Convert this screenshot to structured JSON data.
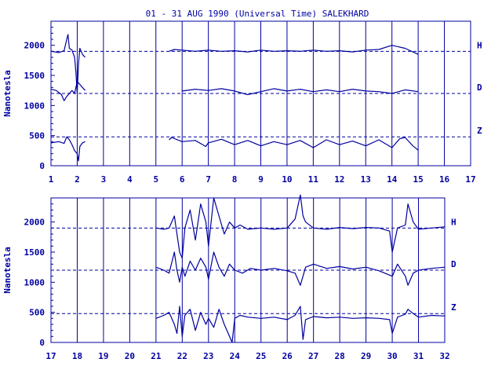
{
  "title": "01 - 31 AUG 1990 (Universal Time) SALEKHARD",
  "colors": {
    "ink": "#0000a0",
    "background": "#ffffff"
  },
  "chart_data": [
    {
      "type": "line",
      "xlabel": "",
      "ylabel": "Nanotesla",
      "xlim": [
        1,
        17
      ],
      "ylim": [
        0,
        2400
      ],
      "x_ticks": [
        1,
        2,
        3,
        4,
        5,
        6,
        7,
        8,
        9,
        10,
        11,
        12,
        13,
        14,
        15,
        16,
        17
      ],
      "y_ticks": [
        0,
        500,
        1000,
        1500,
        2000
      ],
      "grid": "vertical lines at each day",
      "baselines": [
        {
          "label": "H",
          "value": 1900
        },
        {
          "label": "D",
          "value": 1200
        },
        {
          "label": "Z",
          "value": 480
        }
      ],
      "series": [
        {
          "name": "H",
          "segments": [
            {
              "x": [
                1.0,
                1.3,
                1.5,
                1.6,
                1.65,
                1.7,
                1.8,
                1.9,
                1.95,
                2.0,
                2.05,
                2.1,
                2.2,
                2.3
              ],
              "y": [
                1900,
                1880,
                1910,
                2100,
                2180,
                1950,
                1920,
                1800,
                1550,
                1200,
                1700,
                1950,
                1850,
                1800
              ]
            },
            {
              "x": [
                5.5,
                5.7,
                6.0,
                6.5,
                7.0,
                7.5,
                8.0,
                8.5,
                9.0,
                9.5,
                10.0,
                10.5,
                11.0,
                11.5,
                12.0,
                12.5,
                13.0,
                13.5,
                14.0,
                14.5,
                15.0
              ],
              "y": [
                1900,
                1930,
                1920,
                1900,
                1920,
                1900,
                1910,
                1890,
                1920,
                1900,
                1910,
                1900,
                1920,
                1900,
                1910,
                1890,
                1920,
                1930,
                2000,
                1950,
                1850
              ]
            }
          ]
        },
        {
          "name": "D",
          "segments": [
            {
              "x": [
                1.0,
                1.2,
                1.4,
                1.5,
                1.6,
                1.7,
                1.8,
                1.9,
                2.0,
                2.1,
                2.2,
                2.3
              ],
              "y": [
                1270,
                1250,
                1180,
                1080,
                1150,
                1200,
                1250,
                1200,
                1400,
                1350,
                1300,
                1250
              ]
            },
            {
              "x": [
                6.0,
                6.5,
                7.0,
                7.5,
                8.0,
                8.5,
                9.0,
                9.5,
                10.0,
                10.5,
                11.0,
                11.5,
                12.0,
                12.5,
                13.0,
                13.5,
                14.0,
                14.5,
                15.0
              ],
              "y": [
                1240,
                1270,
                1250,
                1280,
                1240,
                1180,
                1230,
                1280,
                1240,
                1270,
                1230,
                1260,
                1230,
                1270,
                1240,
                1230,
                1200,
                1260,
                1230
              ]
            }
          ]
        },
        {
          "name": "Z",
          "segments": [
            {
              "x": [
                1.0,
                1.3,
                1.5,
                1.6,
                1.7,
                1.8,
                1.9,
                2.0,
                2.05,
                2.1,
                2.2,
                2.3
              ],
              "y": [
                380,
                400,
                370,
                480,
                430,
                350,
                250,
                200,
                80,
                320,
                380,
                400
              ]
            },
            {
              "x": [
                5.5,
                5.6,
                6.0,
                6.5,
                6.9,
                7.0,
                7.5,
                8.0,
                8.5,
                9.0,
                9.5,
                10.0,
                10.5,
                11.0,
                11.5,
                12.0,
                12.5,
                13.0,
                13.5,
                14.0,
                14.3,
                14.5,
                14.8,
                15.0
              ],
              "y": [
                430,
                470,
                400,
                420,
                320,
                380,
                440,
                350,
                420,
                330,
                400,
                350,
                420,
                300,
                430,
                350,
                410,
                330,
                430,
                300,
                450,
                470,
                330,
                260
              ]
            }
          ]
        }
      ]
    },
    {
      "type": "line",
      "xlabel": "",
      "ylabel": "Nanotesla",
      "xlim": [
        17,
        32
      ],
      "ylim": [
        0,
        2400
      ],
      "x_ticks": [
        17,
        18,
        19,
        20,
        21,
        22,
        23,
        24,
        25,
        26,
        27,
        28,
        29,
        30,
        31,
        32
      ],
      "y_ticks": [
        0,
        500,
        1000,
        1500,
        2000
      ],
      "grid": "vertical lines at each day",
      "baselines": [
        {
          "label": "H",
          "value": 1900
        },
        {
          "label": "D",
          "value": 1200
        },
        {
          "label": "Z",
          "value": 480
        }
      ],
      "series": [
        {
          "name": "H",
          "segments": [
            {
              "x": [
                21.0,
                21.3,
                21.5,
                21.7,
                21.8,
                21.9,
                22.0,
                22.1,
                22.3,
                22.5,
                22.7,
                22.9,
                23.0,
                23.2,
                23.4,
                23.6,
                23.8,
                24.0,
                24.2,
                24.5,
                25.0,
                25.5,
                26.0,
                26.3,
                26.5,
                26.6,
                26.7,
                27.0,
                27.5,
                28.0,
                28.5,
                29.0,
                29.5,
                29.9,
                30.0,
                30.2,
                30.5,
                30.6,
                30.8,
                31.0,
                31.5,
                32.0
              ],
              "y": [
                1900,
                1880,
                1900,
                2100,
                1800,
                1500,
                1400,
                1900,
                2200,
                1700,
                2300,
                2000,
                1600,
                2400,
                2100,
                1800,
                2000,
                1900,
                1950,
                1880,
                1900,
                1880,
                1900,
                2050,
                2450,
                2100,
                2000,
                1900,
                1880,
                1910,
                1890,
                1910,
                1900,
                1850,
                1500,
                1900,
                1950,
                2300,
                2000,
                1880,
                1900,
                1920
              ]
            }
          ]
        },
        {
          "name": "D",
          "segments": [
            {
              "x": [
                21.0,
                21.3,
                21.5,
                21.7,
                21.8,
                21.9,
                22.0,
                22.1,
                22.3,
                22.5,
                22.7,
                22.9,
                23.0,
                23.2,
                23.4,
                23.6,
                23.8,
                24.0,
                24.3,
                24.6,
                25.0,
                25.5,
                26.0,
                26.3,
                26.5,
                26.6,
                26.7,
                27.0,
                27.5,
                28.0,
                28.5,
                29.0,
                29.5,
                30.0,
                30.2,
                30.5,
                30.6,
                30.8,
                31.0,
                31.5,
                32.0
              ],
              "y": [
                1250,
                1200,
                1150,
                1500,
                1200,
                1000,
                1250,
                1100,
                1350,
                1200,
                1400,
                1250,
                1050,
                1500,
                1250,
                1100,
                1300,
                1200,
                1150,
                1230,
                1200,
                1230,
                1190,
                1150,
                950,
                1100,
                1250,
                1300,
                1230,
                1260,
                1220,
                1250,
                1190,
                1100,
                1300,
                1100,
                950,
                1150,
                1200,
                1230,
                1250
              ]
            }
          ]
        },
        {
          "name": "Z",
          "segments": [
            {
              "x": [
                21.0,
                21.3,
                21.5,
                21.7,
                21.8,
                21.9,
                22.0,
                22.1,
                22.3,
                22.5,
                22.7,
                22.9,
                23.0,
                23.2,
                23.4,
                23.6,
                23.8,
                23.9,
                24.0,
                24.2,
                24.5,
                25.0,
                25.5,
                26.0,
                26.3,
                26.5,
                26.6,
                26.7,
                27.0,
                27.5,
                28.0,
                28.5,
                29.0,
                29.5,
                29.9,
                30.0,
                30.2,
                30.5,
                30.6,
                30.8,
                31.0,
                31.5,
                32.0
              ],
              "y": [
                400,
                450,
                500,
                300,
                150,
                600,
                100,
                450,
                550,
                200,
                500,
                300,
                400,
                250,
                550,
                300,
                100,
                0,
                400,
                450,
                420,
                400,
                420,
                380,
                450,
                600,
                50,
                380,
                430,
                410,
                420,
                400,
                410,
                400,
                380,
                150,
                420,
                470,
                550,
                480,
                420,
                450,
                440
              ]
            }
          ]
        }
      ]
    }
  ]
}
